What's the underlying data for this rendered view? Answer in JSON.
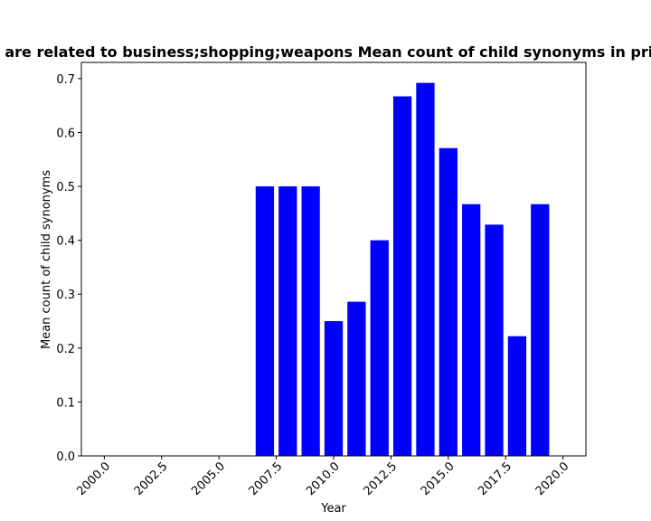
{
  "chart_data": {
    "type": "bar",
    "title": "are related to business;shopping;weapons Mean count of child synonyms in priv",
    "xlabel": "Year",
    "ylabel": "Mean count of child synonyms",
    "x": [
      2007,
      2008,
      2009,
      2010,
      2011,
      2012,
      2013,
      2014,
      2015,
      2016,
      2017,
      2018,
      2019
    ],
    "values": [
      0.5,
      0.5,
      0.5,
      0.25,
      0.286,
      0.4,
      0.667,
      0.692,
      0.571,
      0.467,
      0.429,
      0.222,
      0.467
    ],
    "xlim": [
      1999,
      2021
    ],
    "ylim": [
      0,
      0.73
    ],
    "xticks": [
      2000.0,
      2002.5,
      2005.0,
      2007.5,
      2010.0,
      2012.5,
      2015.0,
      2017.5,
      2020.0
    ],
    "xtick_labels": [
      "2000.0",
      "2002.5",
      "2005.0",
      "2007.5",
      "2010.0",
      "2012.5",
      "2015.0",
      "2017.5",
      "2020.0"
    ],
    "yticks": [
      0.0,
      0.1,
      0.2,
      0.3,
      0.4,
      0.5,
      0.6,
      0.7
    ],
    "ytick_labels": [
      "0.0",
      "0.1",
      "0.2",
      "0.3",
      "0.4",
      "0.5",
      "0.6",
      "0.7"
    ],
    "bar_color": "#0000ff",
    "grid": false,
    "legend": "none"
  }
}
